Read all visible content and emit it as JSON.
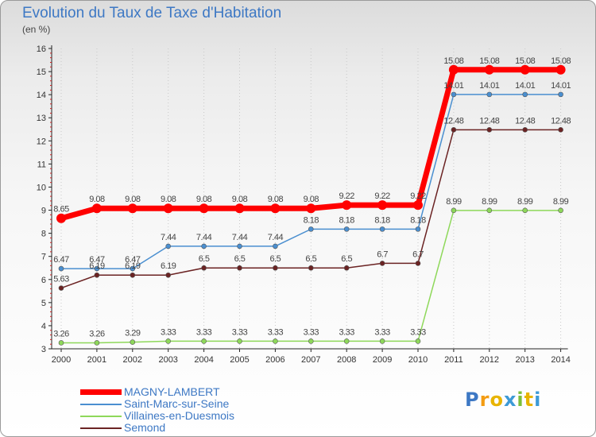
{
  "chart_data": {
    "type": "line",
    "title": "Evolution du Taux de Taxe d'Habitation",
    "unit_label": "(en %)",
    "x": [
      "2000",
      "2001",
      "2002",
      "2003",
      "2004",
      "2005",
      "2006",
      "2007",
      "2008",
      "2009",
      "2010",
      "2011",
      "2012",
      "2013",
      "2014"
    ],
    "ylim": [
      3,
      16
    ],
    "yticks": [
      "3",
      "4",
      "5",
      "6",
      "7",
      "8",
      "9",
      "10",
      "11",
      "12",
      "13",
      "14",
      "15",
      "16"
    ],
    "grid": "dotted vertical lines at each year",
    "legend_position": "bottom-left",
    "series": [
      {
        "name": "MAGNY-LAMBERT",
        "color": "#ff0000",
        "values": [
          8.65,
          9.08,
          9.08,
          9.08,
          9.08,
          9.08,
          9.08,
          9.08,
          9.22,
          9.22,
          9.22,
          15.08,
          15.08,
          15.08,
          15.08
        ],
        "labels": [
          "8.65",
          "9.08",
          "9.08",
          "9.08",
          "9.08",
          "9.08",
          "9.08",
          "9.08",
          "9.22",
          "9.22",
          "9.22",
          "15.08",
          "15.08",
          "15.08",
          "15.08"
        ]
      },
      {
        "name": "Saint-Marc-sur-Seine",
        "color": "#4a8fd0",
        "values": [
          6.47,
          6.47,
          6.47,
          7.44,
          7.44,
          7.44,
          7.44,
          8.18,
          8.18,
          8.18,
          8.18,
          14.01,
          14.01,
          14.01,
          14.01
        ],
        "labels": [
          "6.47",
          "6.47",
          "6.47",
          "7.44",
          "7.44",
          "7.44",
          "7.44",
          "8.18",
          "8.18",
          "8.18",
          "8.18",
          "14.01",
          "14.01",
          "14.01",
          "14.01"
        ]
      },
      {
        "name": "Villaines-en-Duesmois",
        "color": "#8ed85a",
        "values": [
          3.26,
          3.26,
          3.29,
          3.33,
          3.33,
          3.33,
          3.33,
          3.33,
          3.33,
          3.33,
          3.33,
          8.99,
          8.99,
          8.99,
          8.99
        ],
        "labels": [
          "3.26",
          "3.26",
          "3.29",
          "3.33",
          "3.33",
          "3.33",
          "3.33",
          "3.33",
          "3.33",
          "3.33",
          "3.33",
          "8.99",
          "8.99",
          "8.99",
          "8.99"
        ]
      },
      {
        "name": "Semond",
        "color": "#6b2323",
        "values": [
          5.63,
          6.19,
          6.19,
          6.19,
          6.5,
          6.5,
          6.5,
          6.5,
          6.5,
          6.7,
          6.7,
          12.48,
          12.48,
          12.48,
          12.48
        ],
        "labels": [
          "5.63",
          "6.19",
          "6.19",
          "6.19",
          "6.5",
          "6.5",
          "6.5",
          "6.5",
          "6.5",
          "6.7",
          "6.7",
          "12.48",
          "12.48",
          "12.48",
          "12.48"
        ]
      }
    ]
  },
  "logo": {
    "letters": [
      "P",
      "r",
      "o",
      "x",
      "i",
      "t",
      "i"
    ],
    "colors": [
      "#3d78c4",
      "#f39c12",
      "#e8b400",
      "#3d9ad6",
      "#7bbf3a",
      "#e8b400",
      "#3d9ad6"
    ]
  }
}
